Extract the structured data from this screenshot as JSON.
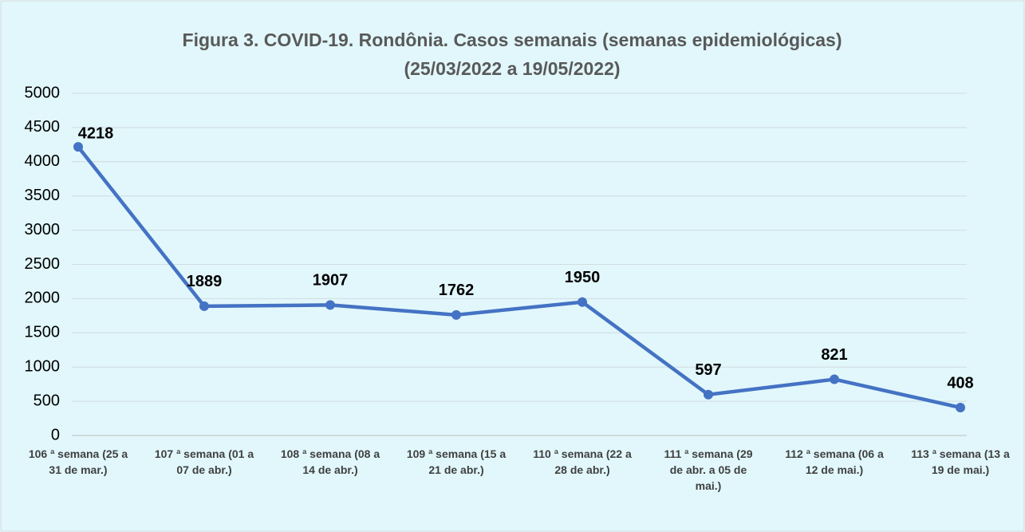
{
  "chart_data": {
    "type": "line",
    "title": "Figura 3. COVID-19. Rondônia. Casos semanais (semanas epidemiológicas)",
    "subtitle": "(25/03/2022 a 19/05/2022)",
    "categories": [
      "106 ª semana (25 a 31 de mar.)",
      "107 ª semana (01 a 07 de abr.)",
      "108 ª semana (08 a 14 de abr.)",
      "109 ª semana (15 a 21 de abr.)",
      "110 ª semana (22 a 28 de abr.)",
      "111 ª semana (29 de abr. a 05 de mai.)",
      "112 ª semana (06 a 12 de mai.)",
      "113 ª semana (13 a 19 de mai.)"
    ],
    "values": [
      4218,
      1889,
      1907,
      1762,
      1950,
      597,
      821,
      408
    ],
    "color": "#4472c4",
    "ylim": [
      0,
      5000
    ],
    "yticks": [
      0,
      500,
      1000,
      1500,
      2000,
      2500,
      3000,
      3500,
      4000,
      4500,
      5000
    ],
    "grid": true
  }
}
